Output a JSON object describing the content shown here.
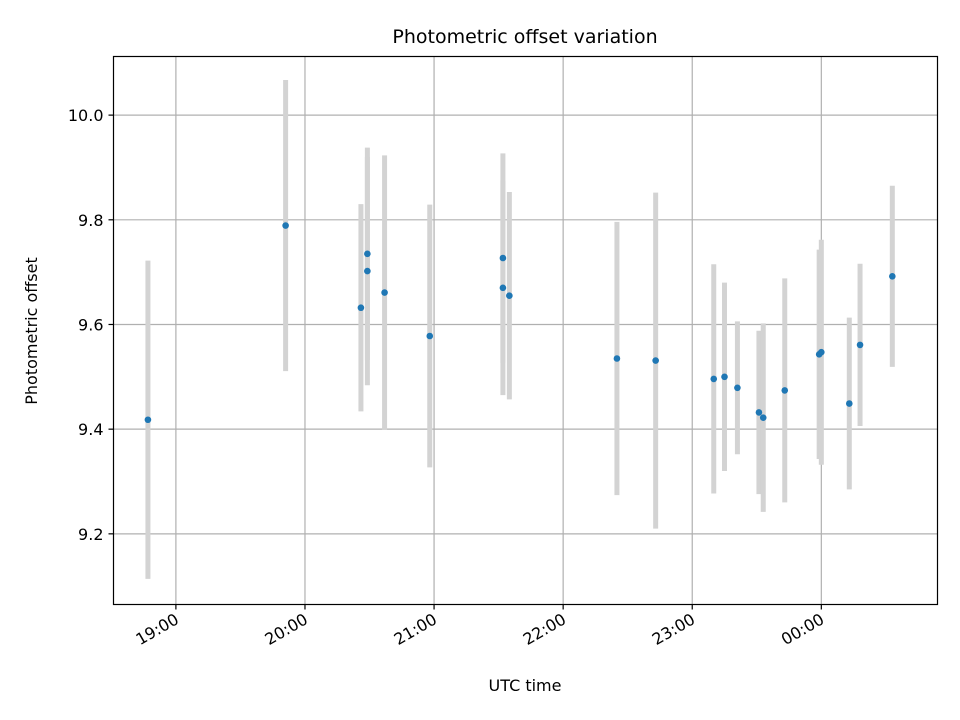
{
  "chart_data": {
    "type": "scatter",
    "title": "Photometric offset variation",
    "xlabel": "UTC time",
    "ylabel": "Photometric offset",
    "xlim": [
      "18:31",
      "00:54"
    ],
    "ylim": [
      9.065,
      10.112
    ],
    "x_ticks": [
      "19:00",
      "20:00",
      "21:00",
      "22:00",
      "23:00",
      "00:00"
    ],
    "y_ticks": [
      "9.2",
      "9.4",
      "9.6",
      "9.8",
      "10.0"
    ],
    "grid": true,
    "colors": {
      "point": "#1f77b4",
      "errorbar": "#d3d3d3",
      "grid": "#b0b0b0"
    },
    "points": [
      {
        "x": "18:47",
        "y": 9.418,
        "yerr": 0.304
      },
      {
        "x": "19:51",
        "y": 9.789,
        "yerr": 0.278
      },
      {
        "x": "20:26",
        "y": 9.632,
        "yerr": 0.198
      },
      {
        "x": "20:29",
        "y": 9.735,
        "yerr": 0.203
      },
      {
        "x": "20:29",
        "y": 9.702,
        "yerr": 0.218
      },
      {
        "x": "20:37",
        "y": 9.661,
        "yerr": 0.262
      },
      {
        "x": "20:58",
        "y": 9.578,
        "yerr": 0.251
      },
      {
        "x": "21:32",
        "y": 9.727,
        "yerr": 0.2
      },
      {
        "x": "21:32",
        "y": 9.67,
        "yerr": 0.205
      },
      {
        "x": "21:35",
        "y": 9.655,
        "yerr": 0.198
      },
      {
        "x": "22:25",
        "y": 9.535,
        "yerr": 0.261
      },
      {
        "x": "22:43",
        "y": 9.531,
        "yerr": 0.321
      },
      {
        "x": "23:10",
        "y": 9.496,
        "yerr": 0.219
      },
      {
        "x": "23:15",
        "y": 9.5,
        "yerr": 0.18
      },
      {
        "x": "23:21",
        "y": 9.479,
        "yerr": 0.127
      },
      {
        "x": "23:31",
        "y": 9.432,
        "yerr": 0.156
      },
      {
        "x": "23:33",
        "y": 9.422,
        "yerr": 0.18
      },
      {
        "x": "23:43",
        "y": 9.474,
        "yerr": 0.214
      },
      {
        "x": "23:59",
        "y": 9.543,
        "yerr": 0.2
      },
      {
        "x": "00:00",
        "y": 9.547,
        "yerr": 0.215
      },
      {
        "x": "00:13",
        "y": 9.449,
        "yerr": 0.164
      },
      {
        "x": "00:18",
        "y": 9.561,
        "yerr": 0.155
      },
      {
        "x": "00:33",
        "y": 9.692,
        "yerr": 0.173
      }
    ]
  }
}
